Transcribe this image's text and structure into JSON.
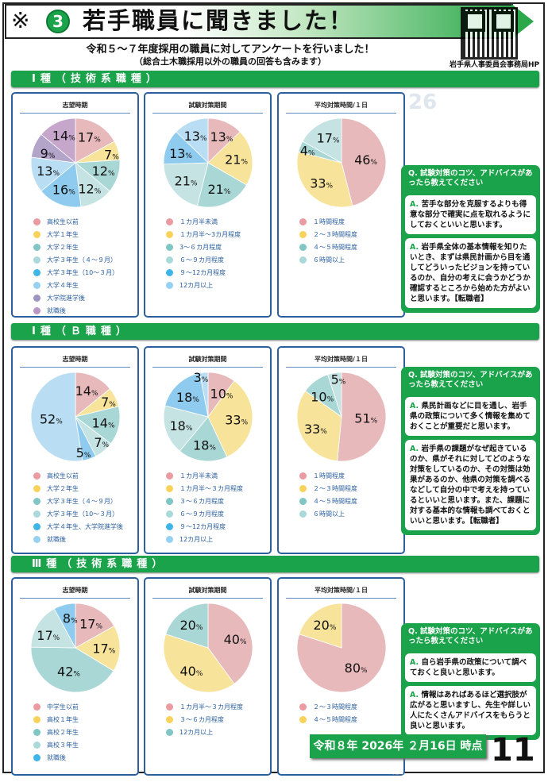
{
  "header": {
    "logo_symbol": "岩手県章",
    "circle_number": "3",
    "title": "若手職員に聞きました！",
    "subtitle": "令和５～７年度採用の職員に対してアンケートを行いました！",
    "note": "（総合土木職採用以外の職員の回答も含みます）",
    "qr_caption": "岩手県人事委員会事務局HP",
    "ghost_text": "26"
  },
  "colors": {
    "brand_green": "#1aa34a",
    "card_border": "#2b5f9e",
    "slice_palette": [
      "#e8b9bb",
      "#f7e39a",
      "#a9d7d6",
      "#c6e3e3",
      "#8ecbee",
      "#b9ddf3",
      "#b3a4c9",
      "#c7a6cc"
    ],
    "legend_palette": [
      "#ea9aa0",
      "#f9d25a",
      "#7fc6c4",
      "#a9d9d9",
      "#3db5e8",
      "#96d1f2",
      "#9f93c1",
      "#bb95c6"
    ]
  },
  "sections": [
    {
      "title": "Ⅰ種（技術系職種）",
      "qa": {
        "question": "Q. 試験対策のコツ、アドバイスがあったら教えてください",
        "answer_mark": "A.",
        "answers": [
          "苦手な部分を克服するよりも得意な部分で確実に点を取れるようにしておくといいと思います。",
          "岩手県全体の基本情報を知りたいとき、まずは県民計画から目を通してどういったビジョンを持っているのか、自分の考えに会うかどうか確認するところから始めた方がよいと思います。【転職者】"
        ]
      }
    },
    {
      "title": "Ⅰ種（Ｂ職種）",
      "qa": {
        "question": "Q. 試験対策のコツ、アドバイスがあったら教えてください",
        "answer_mark": "A.",
        "answers": [
          "県民計画などに目を通し、岩手県の政策について多く情報を集めておくことが重要だと思います。",
          "岩手県の課題がなぜ起きているのか、県がそれに対してどのような対策をしているのか、その対策は効果があるのか、他県の対策を調べるなどして自分の中で考えを持っているといいと思います。また、課題に対する基本的な情報も調べておくといいと思います。【転職者】"
        ]
      }
    },
    {
      "title": "Ⅲ種（技術系職種）",
      "qa": {
        "question": "Q. 試験対策のコツ、アドバイスがあったら教えてください",
        "answer_mark": "A.",
        "answers": [
          "自ら岩手県の政策について調べておくと良いと思います。",
          "情報はあればあるほど選択肢が広がると思いますし、先生や詳しい人にたくさんアドバイスをもらうと良いと思います。"
        ]
      }
    }
  ],
  "chart_data": [
    {
      "type": "pie",
      "section": 0,
      "title": "志望時期",
      "unit": "%",
      "categories": [
        "高校生以前",
        "大学１年生",
        "大学２年生",
        "大学３年生（４～９月）",
        "大学３年生（10～３月）",
        "大学４年生",
        "大学院進学後",
        "就職後"
      ],
      "values": [
        17,
        7,
        12,
        12,
        16,
        13,
        9,
        14
      ]
    },
    {
      "type": "pie",
      "section": 0,
      "title": "試験対策期間",
      "unit": "%",
      "categories": [
        "１カ月半未満",
        "１カ月半～3カ月程度",
        "3～６カ月程度",
        "６～９カ月程度",
        "９～12カ月程度",
        "12カ月以上"
      ],
      "values": [
        13,
        21,
        21,
        21,
        13,
        13
      ]
    },
    {
      "type": "pie",
      "section": 0,
      "title": "平均対策時間/１日",
      "unit": "%",
      "categories": [
        "１時間程度",
        "２～３時間程度",
        "４～５時間程度",
        "６時間以上"
      ],
      "values": [
        46,
        33,
        4,
        17
      ]
    },
    {
      "type": "pie",
      "section": 1,
      "title": "志望時期",
      "unit": "%",
      "categories": [
        "高校生以前",
        "大学２年生",
        "大学３年生（４～９月）",
        "大学３年生（10～３月）",
        "大学４年生、大学院進学後",
        "就職後"
      ],
      "values": [
        14,
        7,
        14,
        7,
        5,
        52
      ]
    },
    {
      "type": "pie",
      "section": 1,
      "title": "試験対策期間",
      "unit": "%",
      "categories": [
        "１カ月半未満",
        "１カ月半～３カ月程度",
        "３～６カ月程度",
        "６～９カ月程度",
        "９～12カ月程度",
        "12カ月以上"
      ],
      "values": [
        10,
        33,
        18,
        18,
        18,
        3
      ]
    },
    {
      "type": "pie",
      "section": 1,
      "title": "平均対策時間/１日",
      "unit": "%",
      "categories": [
        "１時間程度",
        "２～３時間程度",
        "４～５時間程度",
        "６時間以上"
      ],
      "values": [
        51,
        33,
        10,
        5
      ]
    },
    {
      "type": "pie",
      "section": 2,
      "title": "志望時期",
      "unit": "%",
      "categories": [
        "中学生以前",
        "高校１年生",
        "高校２年生",
        "高校３年生",
        "就職後"
      ],
      "values": [
        17,
        17,
        42,
        17,
        8
      ]
    },
    {
      "type": "pie",
      "section": 2,
      "title": "試験対策期間",
      "unit": "%",
      "categories": [
        "１カ月半～３カ月程度",
        "３～６カ月程度",
        "12カ月以上"
      ],
      "values": [
        40,
        40,
        20
      ]
    },
    {
      "type": "pie",
      "section": 2,
      "title": "平均対策時間/１日",
      "unit": "%",
      "categories": [
        "２～３時間程度",
        "４～５時間程度"
      ],
      "values": [
        80,
        20
      ]
    }
  ],
  "footer": {
    "date": "令和８年 2026年 ２月16日 時点版",
    "page": "11"
  }
}
